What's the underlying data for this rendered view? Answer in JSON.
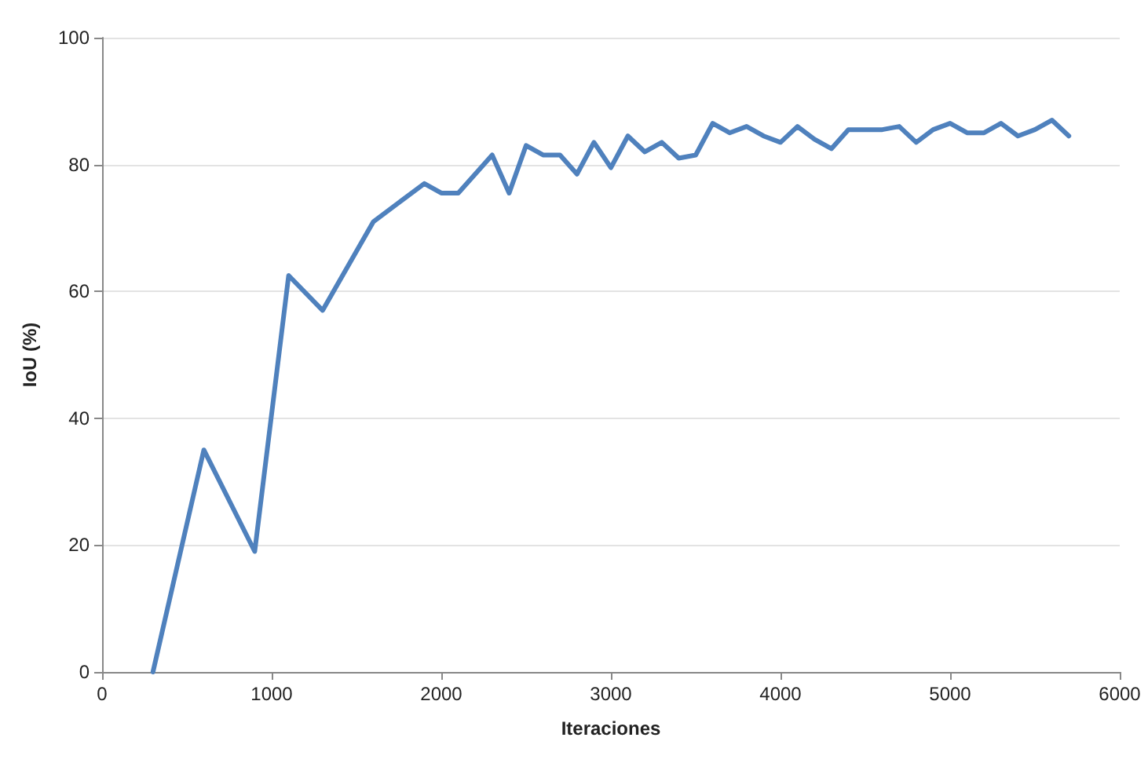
{
  "chart_data": {
    "type": "line",
    "xlabel": "Iteraciones",
    "ylabel": "IoU (%)",
    "x": [
      300,
      600,
      900,
      1100,
      1300,
      1600,
      1900,
      2000,
      2100,
      2300,
      2400,
      2500,
      2600,
      2700,
      2800,
      2900,
      3000,
      3100,
      3200,
      3300,
      3400,
      3500,
      3600,
      3700,
      3800,
      3900,
      4000,
      4100,
      4200,
      4300,
      4400,
      4500,
      4600,
      4700,
      4800,
      4900,
      5000,
      5100,
      5200,
      5300,
      5400,
      5500,
      5600,
      5700
    ],
    "series": [
      {
        "color": "#4f81bd",
        "values": [
          0,
          35,
          19,
          62.5,
          57,
          71,
          77,
          75.5,
          75.5,
          81.5,
          75.5,
          83,
          81.5,
          81.5,
          78.5,
          83.5,
          79.5,
          84.5,
          82,
          83.5,
          81,
          81.5,
          86.5,
          85,
          86,
          84.5,
          83.5,
          86,
          84,
          82.5,
          85.5,
          85.5,
          85.5,
          86,
          83.5,
          85.5,
          86.5,
          85,
          85,
          86.5,
          84.5,
          85.5,
          87,
          84.5
        ]
      }
    ],
    "xlim": [
      0,
      6000
    ],
    "xticks": [
      0,
      1000,
      2000,
      3000,
      4000,
      5000,
      6000
    ],
    "ylim": [
      0,
      100
    ],
    "yticks": [
      0,
      20,
      40,
      60,
      80,
      100
    ],
    "grid": "y",
    "marker": "none",
    "line_style": "solid"
  }
}
